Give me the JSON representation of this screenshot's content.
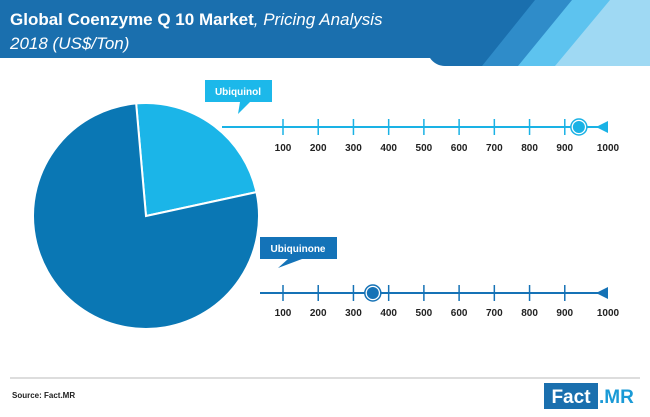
{
  "header": {
    "title_bold": "Global Coenzyme Q 10 Market",
    "title_italic": ", Pricing Analysis",
    "subtitle": "2018 (US$/Ton)"
  },
  "colors": {
    "header_blue": "#1a6fae",
    "pie_dark": "#0a77b4",
    "pie_light": "#1bb5e8",
    "callout_light": "#1cb8ea",
    "callout_dark": "#1473b8",
    "scale_dark": "#1572b6",
    "scale_light": "#1ab2e5"
  },
  "chart_data": {
    "type": "pie",
    "slices": [
      {
        "label": "Ubiquinol",
        "share_pct": 23
      },
      {
        "label": "Ubiquinone",
        "share_pct": 77
      }
    ],
    "price_scales": [
      {
        "label": "Ubiquinol",
        "ticks": [
          100,
          200,
          300,
          400,
          500,
          600,
          700,
          800,
          900,
          1000
        ],
        "marker_value": 940
      },
      {
        "label": "Ubiquinone",
        "ticks": [
          100,
          200,
          300,
          400,
          500,
          600,
          700,
          800,
          900,
          1000
        ],
        "marker_value": 355
      }
    ]
  },
  "footer": {
    "source": "Source: Fact.MR",
    "logo_left": "Fact",
    "logo_right": ".MR"
  }
}
